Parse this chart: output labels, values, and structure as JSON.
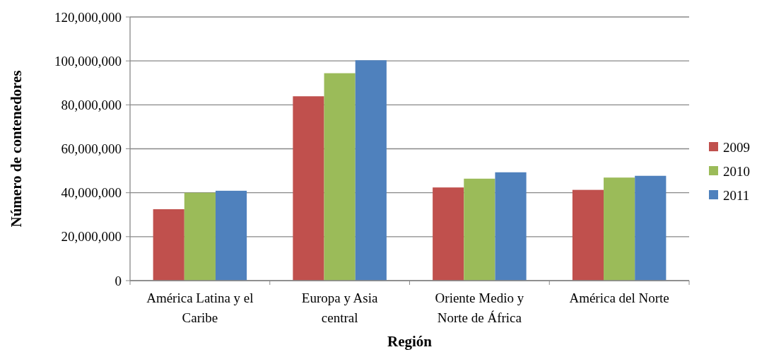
{
  "chart_data": {
    "type": "bar",
    "xlabel": "Región",
    "ylabel": "Número de contenedores",
    "categories": [
      "América Latina y el Caribe",
      "Europa y Asia central",
      "Oriente Medio y Norte de África",
      "América del Norte"
    ],
    "series": [
      {
        "name": "2009",
        "color": "#c0504d",
        "values": [
          32500000,
          83900000,
          42400000,
          41300000
        ]
      },
      {
        "name": "2010",
        "color": "#9bbb59",
        "values": [
          40000000,
          94400000,
          46400000,
          46900000
        ]
      },
      {
        "name": "2011",
        "color": "#4f81bd",
        "values": [
          40900000,
          100300000,
          49300000,
          47700000
        ]
      }
    ],
    "ylim": [
      0,
      120000000
    ],
    "yticks": [
      0,
      {
        "value": 20000000,
        "label": "20,000,000"
      },
      {
        "value": 40000000,
        "label": "40,000,000"
      },
      {
        "value": 60000000,
        "label": "60,000,000"
      },
      {
        "value": 80000000,
        "label": "80,000,000"
      },
      {
        "value": 100000000,
        "label": "100,000,000"
      },
      {
        "value": 120000000,
        "label": "120,000,000"
      }
    ],
    "grid": "y",
    "legend": "right"
  }
}
